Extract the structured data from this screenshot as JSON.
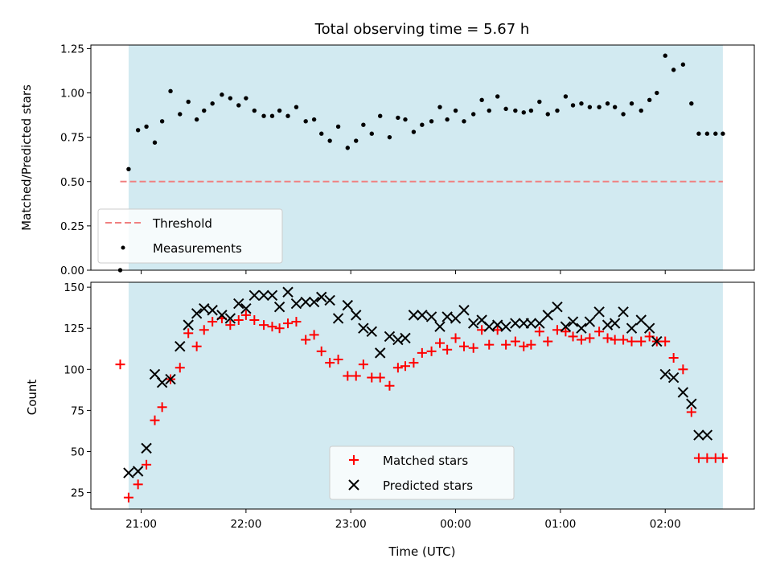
{
  "chart_data": [
    {
      "type": "scatter",
      "title": "Total observing time = 5.67 h",
      "xlabel": "",
      "ylabel": "Matched/Predicted stars",
      "x_unit": "hours since 21:00 UTC",
      "ylim": [
        0,
        1.27
      ],
      "yticks": [
        0.0,
        0.25,
        0.5,
        0.75,
        1.0,
        1.25
      ],
      "ytick_labels": [
        "0.00",
        "0.25",
        "0.50",
        "0.75",
        "1.00",
        "1.25"
      ],
      "xticks": [
        0,
        1,
        2,
        3,
        4,
        5
      ],
      "xtick_labels": [
        "",
        "",
        "",
        "",
        "",
        ""
      ],
      "grid": false,
      "legend_position": "lower-left",
      "observing_window": [
        -0.12,
        5.55
      ],
      "observing_window_color": "#add8e6",
      "series": [
        {
          "name": "Threshold",
          "kind": "line",
          "style": "dashed",
          "color": "#f08080",
          "x": [
            -0.2,
            5.55
          ],
          "y": [
            0.5,
            0.5
          ]
        },
        {
          "name": "Measurements",
          "kind": "scatter",
          "marker": "dot",
          "color": "#000000",
          "x": [
            -0.2,
            -0.12,
            -0.03,
            0.05,
            0.13,
            0.2,
            0.28,
            0.37,
            0.45,
            0.53,
            0.6,
            0.68,
            0.77,
            0.85,
            0.93,
            1.0,
            1.08,
            1.17,
            1.25,
            1.32,
            1.4,
            1.48,
            1.57,
            1.65,
            1.72,
            1.8,
            1.88,
            1.97,
            2.05,
            2.12,
            2.2,
            2.28,
            2.37,
            2.45,
            2.52,
            2.6,
            2.68,
            2.77,
            2.85,
            2.92,
            3.0,
            3.08,
            3.17,
            3.25,
            3.32,
            3.4,
            3.48,
            3.57,
            3.65,
            3.72,
            3.8,
            3.88,
            3.97,
            4.05,
            4.12,
            4.2,
            4.28,
            4.37,
            4.45,
            4.52,
            4.6,
            4.68,
            4.77,
            4.85,
            4.92,
            5.0,
            5.08,
            5.17,
            5.25,
            5.32,
            5.4,
            5.48,
            5.55
          ],
          "y": [
            0.0,
            0.57,
            0.79,
            0.81,
            0.72,
            0.84,
            1.01,
            0.88,
            0.95,
            0.85,
            0.9,
            0.94,
            0.99,
            0.97,
            0.93,
            0.97,
            0.9,
            0.87,
            0.87,
            0.9,
            0.87,
            0.92,
            0.84,
            0.85,
            0.77,
            0.73,
            0.81,
            0.69,
            0.73,
            0.82,
            0.77,
            0.87,
            0.75,
            0.86,
            0.85,
            0.78,
            0.82,
            0.84,
            0.92,
            0.85,
            0.9,
            0.84,
            0.88,
            0.96,
            0.9,
            0.98,
            0.91,
            0.9,
            0.89,
            0.9,
            0.95,
            0.88,
            0.9,
            0.98,
            0.93,
            0.94,
            0.92,
            0.92,
            0.94,
            0.92,
            0.88,
            0.94,
            0.9,
            0.96,
            1.0,
            1.21,
            1.13,
            1.16,
            0.94,
            0.77,
            0.77,
            0.77,
            0.77
          ]
        }
      ]
    },
    {
      "type": "scatter",
      "title": "",
      "xlabel": "Time (UTC)",
      "ylabel": "Count",
      "x_unit": "hours since 21:00 UTC",
      "ylim": [
        15,
        153
      ],
      "yticks": [
        25,
        50,
        75,
        100,
        125,
        150
      ],
      "ytick_labels": [
        "25",
        "50",
        "75",
        "100",
        "125",
        "150"
      ],
      "xticks": [
        0,
        1,
        2,
        3,
        4,
        5
      ],
      "xtick_labels": [
        "21:00",
        "22:00",
        "23:00",
        "00:00",
        "01:00",
        "02:00"
      ],
      "xlim": [
        -0.48,
        5.85
      ],
      "grid": false,
      "legend_position": "lower-center",
      "observing_window": [
        -0.12,
        5.55
      ],
      "observing_window_color": "#add8e6",
      "series": [
        {
          "name": "Matched stars",
          "kind": "scatter",
          "marker": "plus",
          "color": "#ff0000",
          "x": [
            -0.2,
            -0.12,
            -0.03,
            0.05,
            0.13,
            0.2,
            0.28,
            0.37,
            0.45,
            0.53,
            0.6,
            0.68,
            0.77,
            0.85,
            0.93,
            1.0,
            1.08,
            1.17,
            1.25,
            1.32,
            1.4,
            1.48,
            1.57,
            1.65,
            1.72,
            1.8,
            1.88,
            1.97,
            2.05,
            2.12,
            2.2,
            2.28,
            2.37,
            2.45,
            2.52,
            2.6,
            2.68,
            2.77,
            2.85,
            2.92,
            3.0,
            3.08,
            3.17,
            3.25,
            3.32,
            3.4,
            3.48,
            3.57,
            3.65,
            3.72,
            3.8,
            3.88,
            3.97,
            4.05,
            4.12,
            4.2,
            4.28,
            4.37,
            4.45,
            4.52,
            4.6,
            4.68,
            4.77,
            4.85,
            4.92,
            5.0,
            5.08,
            5.17,
            5.25,
            5.32,
            5.4,
            5.48,
            5.55
          ],
          "y": [
            103,
            22,
            30,
            42,
            69,
            77,
            94,
            101,
            122,
            114,
            124,
            129,
            131,
            127,
            130,
            133,
            130,
            127,
            126,
            125,
            128,
            129,
            118,
            121,
            111,
            104,
            106,
            96,
            96,
            103,
            95,
            95,
            90,
            101,
            102,
            104,
            110,
            111,
            116,
            112,
            119,
            114,
            113,
            124,
            115,
            124,
            115,
            117,
            114,
            115,
            123,
            117,
            124,
            123,
            120,
            118,
            119,
            123,
            119,
            118,
            118,
            117,
            117,
            120,
            117,
            117,
            107,
            100,
            74,
            46,
            46,
            46,
            46
          ]
        },
        {
          "name": "Predicted stars",
          "kind": "scatter",
          "marker": "cross",
          "color": "#000000",
          "x": [
            -0.12,
            -0.03,
            0.05,
            0.13,
            0.2,
            0.28,
            0.37,
            0.45,
            0.53,
            0.6,
            0.68,
            0.77,
            0.85,
            0.93,
            1.0,
            1.08,
            1.17,
            1.25,
            1.32,
            1.4,
            1.48,
            1.57,
            1.65,
            1.72,
            1.8,
            1.88,
            1.97,
            2.05,
            2.12,
            2.2,
            2.28,
            2.37,
            2.45,
            2.52,
            2.6,
            2.68,
            2.77,
            2.85,
            2.92,
            3.0,
            3.08,
            3.17,
            3.25,
            3.32,
            3.4,
            3.48,
            3.57,
            3.65,
            3.72,
            3.8,
            3.88,
            3.97,
            4.05,
            4.12,
            4.2,
            4.28,
            4.37,
            4.45,
            4.52,
            4.6,
            4.68,
            4.77,
            4.85,
            4.92,
            5.0,
            5.08,
            5.17,
            5.25,
            5.32,
            5.4
          ],
          "y": [
            37,
            38,
            52,
            97,
            92,
            94,
            114,
            127,
            134,
            137,
            136,
            133,
            131,
            140,
            137,
            145,
            145,
            145,
            138,
            147,
            140,
            141,
            141,
            144,
            142,
            131,
            139,
            133,
            125,
            123,
            110,
            120,
            118,
            119,
            133,
            133,
            132,
            126,
            132,
            131,
            136,
            128,
            130,
            126,
            127,
            126,
            128,
            128,
            128,
            128,
            133,
            138,
            126,
            129,
            125,
            129,
            135,
            127,
            128,
            135,
            125,
            130,
            125,
            117,
            97,
            95,
            86,
            79,
            60,
            60
          ]
        }
      ]
    }
  ]
}
